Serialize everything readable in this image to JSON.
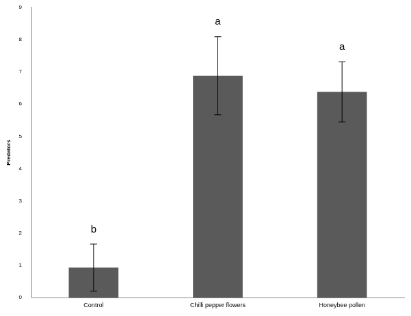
{
  "chart_data": {
    "type": "bar",
    "y_label": "Predators",
    "categories": [
      "Control",
      "Chilli pepper flowers",
      "Honeybee pollen"
    ],
    "values": [
      0.93,
      6.88,
      6.38
    ],
    "errors": [
      0.73,
      1.21,
      0.93
    ],
    "annotations": [
      "b",
      "a",
      "a"
    ],
    "color": "#5a5a5a",
    "ylim": [
      0,
      9
    ],
    "yticks": [
      0,
      1,
      2,
      3,
      4,
      5,
      6,
      7,
      8,
      9
    ],
    "grid": false
  }
}
